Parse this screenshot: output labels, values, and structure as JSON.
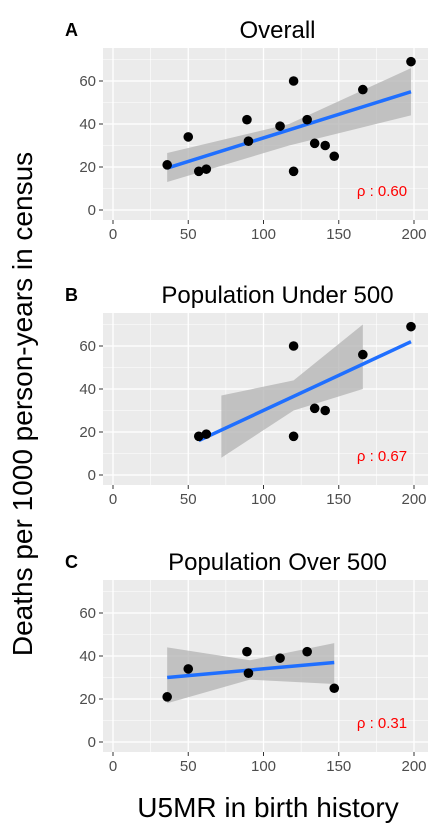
{
  "figure": {
    "ylabel": "Deaths per 1000 person-years in census",
    "xlabel": "U5MR in birth history"
  },
  "colors": {
    "panel_bg": "#ebebeb",
    "grid": "#ffffff",
    "points": "#000000",
    "line": "#1f6fff",
    "ci_band": "#b3b3b3",
    "rho_text": "#ff0000",
    "tick_text": "#4d4d4d"
  },
  "chart_data": [
    {
      "type": "scatter",
      "panel": "A",
      "title": "Overall",
      "xlabel": "U5MR in birth history",
      "ylabel": "Deaths per 1000 person-years in census",
      "xlim": [
        0,
        200
      ],
      "ylim": [
        0,
        70
      ],
      "xticks": [
        0,
        50,
        100,
        150,
        200
      ],
      "yticks": [
        0,
        20,
        40,
        60
      ],
      "points": [
        {
          "x": 36,
          "y": 21
        },
        {
          "x": 50,
          "y": 34
        },
        {
          "x": 57,
          "y": 18
        },
        {
          "x": 62,
          "y": 19
        },
        {
          "x": 89,
          "y": 42
        },
        {
          "x": 90,
          "y": 32
        },
        {
          "x": 111,
          "y": 39
        },
        {
          "x": 120,
          "y": 60
        },
        {
          "x": 120,
          "y": 18
        },
        {
          "x": 129,
          "y": 42
        },
        {
          "x": 134,
          "y": 31
        },
        {
          "x": 141,
          "y": 30
        },
        {
          "x": 147,
          "y": 25
        },
        {
          "x": 166,
          "y": 56
        },
        {
          "x": 198,
          "y": 69
        }
      ],
      "fit": {
        "x": [
          36,
          198
        ],
        "y": [
          19.5,
          55
        ]
      },
      "ci": {
        "x": [
          36,
          117,
          198
        ],
        "upper": [
          26.5,
          40,
          66
        ],
        "lower": [
          13,
          30,
          44
        ]
      },
      "rho_label": "ρ : 0.60"
    },
    {
      "type": "scatter",
      "panel": "B",
      "title": "Population Under 500",
      "xlabel": "U5MR in birth history",
      "ylabel": "Deaths per 1000 person-years in census",
      "xlim": [
        0,
        200
      ],
      "ylim": [
        0,
        70
      ],
      "xticks": [
        0,
        50,
        100,
        150,
        200
      ],
      "yticks": [
        0,
        20,
        40,
        60
      ],
      "points": [
        {
          "x": 57,
          "y": 18
        },
        {
          "x": 62,
          "y": 19
        },
        {
          "x": 120,
          "y": 60
        },
        {
          "x": 120,
          "y": 18
        },
        {
          "x": 134,
          "y": 31
        },
        {
          "x": 141,
          "y": 30
        },
        {
          "x": 166,
          "y": 56
        },
        {
          "x": 198,
          "y": 69
        }
      ],
      "fit": {
        "x": [
          57,
          198
        ],
        "y": [
          16,
          62
        ]
      },
      "ci": {
        "x": [
          72,
          120,
          166
        ],
        "upper": [
          37,
          44,
          70
        ],
        "lower": [
          8,
          30,
          40
        ]
      },
      "rho_label": "ρ : 0.67"
    },
    {
      "type": "scatter",
      "panel": "C",
      "title": "Population Over 500",
      "xlabel": "U5MR in birth history",
      "ylabel": "Deaths per 1000 person-years in census",
      "xlim": [
        0,
        200
      ],
      "ylim": [
        0,
        70
      ],
      "xticks": [
        0,
        50,
        100,
        150,
        200
      ],
      "yticks": [
        0,
        20,
        40,
        60
      ],
      "points": [
        {
          "x": 36,
          "y": 21
        },
        {
          "x": 50,
          "y": 34
        },
        {
          "x": 89,
          "y": 42
        },
        {
          "x": 90,
          "y": 32
        },
        {
          "x": 111,
          "y": 39
        },
        {
          "x": 129,
          "y": 42
        },
        {
          "x": 147,
          "y": 25
        }
      ],
      "fit": {
        "x": [
          36,
          147
        ],
        "y": [
          30,
          37
        ]
      },
      "ci": {
        "x": [
          36,
          91,
          147
        ],
        "upper": [
          44,
          38,
          46
        ],
        "lower": [
          18,
          29,
          27
        ]
      },
      "rho_label": "ρ : 0.31"
    }
  ]
}
